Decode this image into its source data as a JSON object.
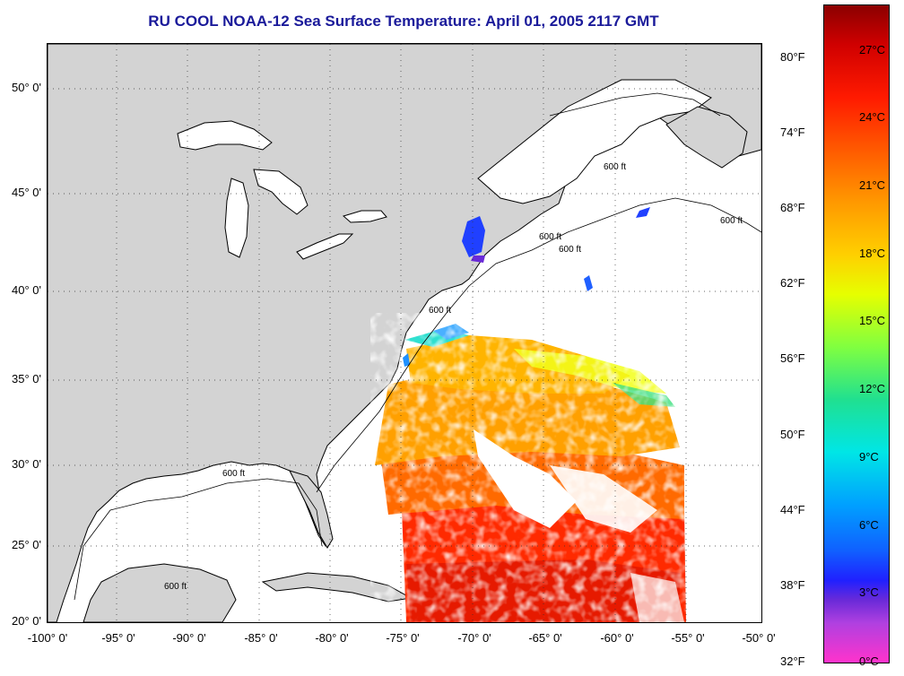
{
  "title": "RU COOL  NOAA-12  Sea Surface Temperature:  April 01, 2005 2117 GMT",
  "map": {
    "lat_labels": [
      "50° 0'",
      "45° 0'",
      "40° 0'",
      "35° 0'",
      "30° 0'",
      "25° 0'",
      "20° 0'"
    ],
    "lon_labels": [
      "-100° 0'",
      "-95° 0'",
      "-90° 0'",
      "-85° 0'",
      "-80° 0'",
      "-75° 0'",
      "-70° 0'",
      "-65° 0'",
      "-60° 0'",
      "-55° 0'",
      "-50° 0'"
    ],
    "isobath_label": "600 ft",
    "land_color": "#d3d3d3",
    "ocean_color": "#ffffff"
  },
  "colorbar": {
    "fahrenheit_labels": [
      "80°F",
      "74°F",
      "68°F",
      "62°F",
      "56°F",
      "50°F",
      "44°F",
      "38°F",
      "32°F"
    ],
    "celsius_labels": [
      "27°C",
      "24°C",
      "21°C",
      "18°C",
      "15°C",
      "12°C",
      "9°C",
      "6°C",
      "3°C",
      "0°C"
    ]
  }
}
